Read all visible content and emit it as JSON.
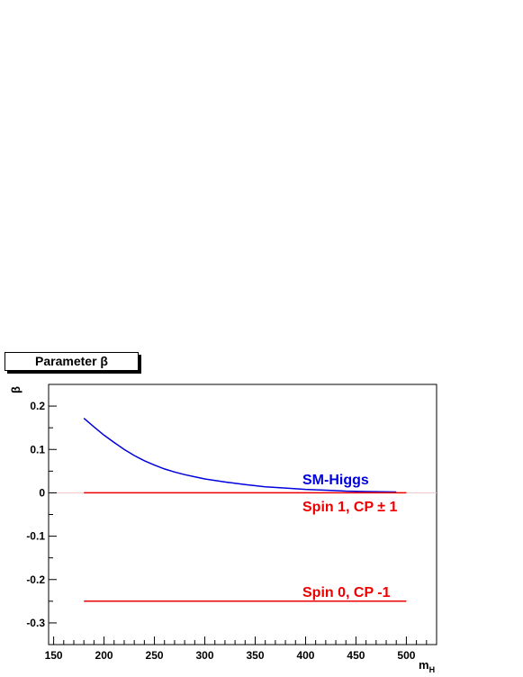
{
  "chart_data": {
    "type": "line",
    "title": "Parameter β",
    "xlabel_main": "m",
    "xlabel_sub": "H",
    "ylabel": "β",
    "xlim": [
      145,
      530
    ],
    "ylim": [
      -0.35,
      0.25
    ],
    "x_ticks": [
      150,
      200,
      250,
      300,
      350,
      400,
      450,
      500
    ],
    "y_ticks": [
      0.2,
      0.1,
      0,
      -0.1,
      -0.2,
      -0.3
    ],
    "y_tick_labels": [
      "0.2",
      "0.1",
      "0",
      "-0.1",
      "-0.2",
      "-0.3"
    ],
    "grid": false,
    "series": [
      {
        "name": "SM-Higgs",
        "color": "#0000dd",
        "x": [
          180,
          190,
          200,
          210,
          220,
          230,
          240,
          250,
          260,
          270,
          280,
          290,
          300,
          320,
          340,
          360,
          380,
          400,
          420,
          440,
          460,
          490
        ],
        "y": [
          0.172,
          0.152,
          0.133,
          0.116,
          0.1,
          0.086,
          0.074,
          0.064,
          0.055,
          0.048,
          0.042,
          0.037,
          0.032,
          0.025,
          0.019,
          0.014,
          0.011,
          0.008,
          0.006,
          0.004,
          0.003,
          0.002
        ]
      },
      {
        "name": "Spin 1, CP ± 1",
        "color": "#ee0000",
        "x": [
          180,
          500
        ],
        "y": [
          0.0,
          0.0
        ]
      },
      {
        "name": "Spin 0, CP -1",
        "color": "#ee0000",
        "x": [
          180,
          500
        ],
        "y": [
          -0.25,
          -0.25
        ]
      }
    ]
  }
}
